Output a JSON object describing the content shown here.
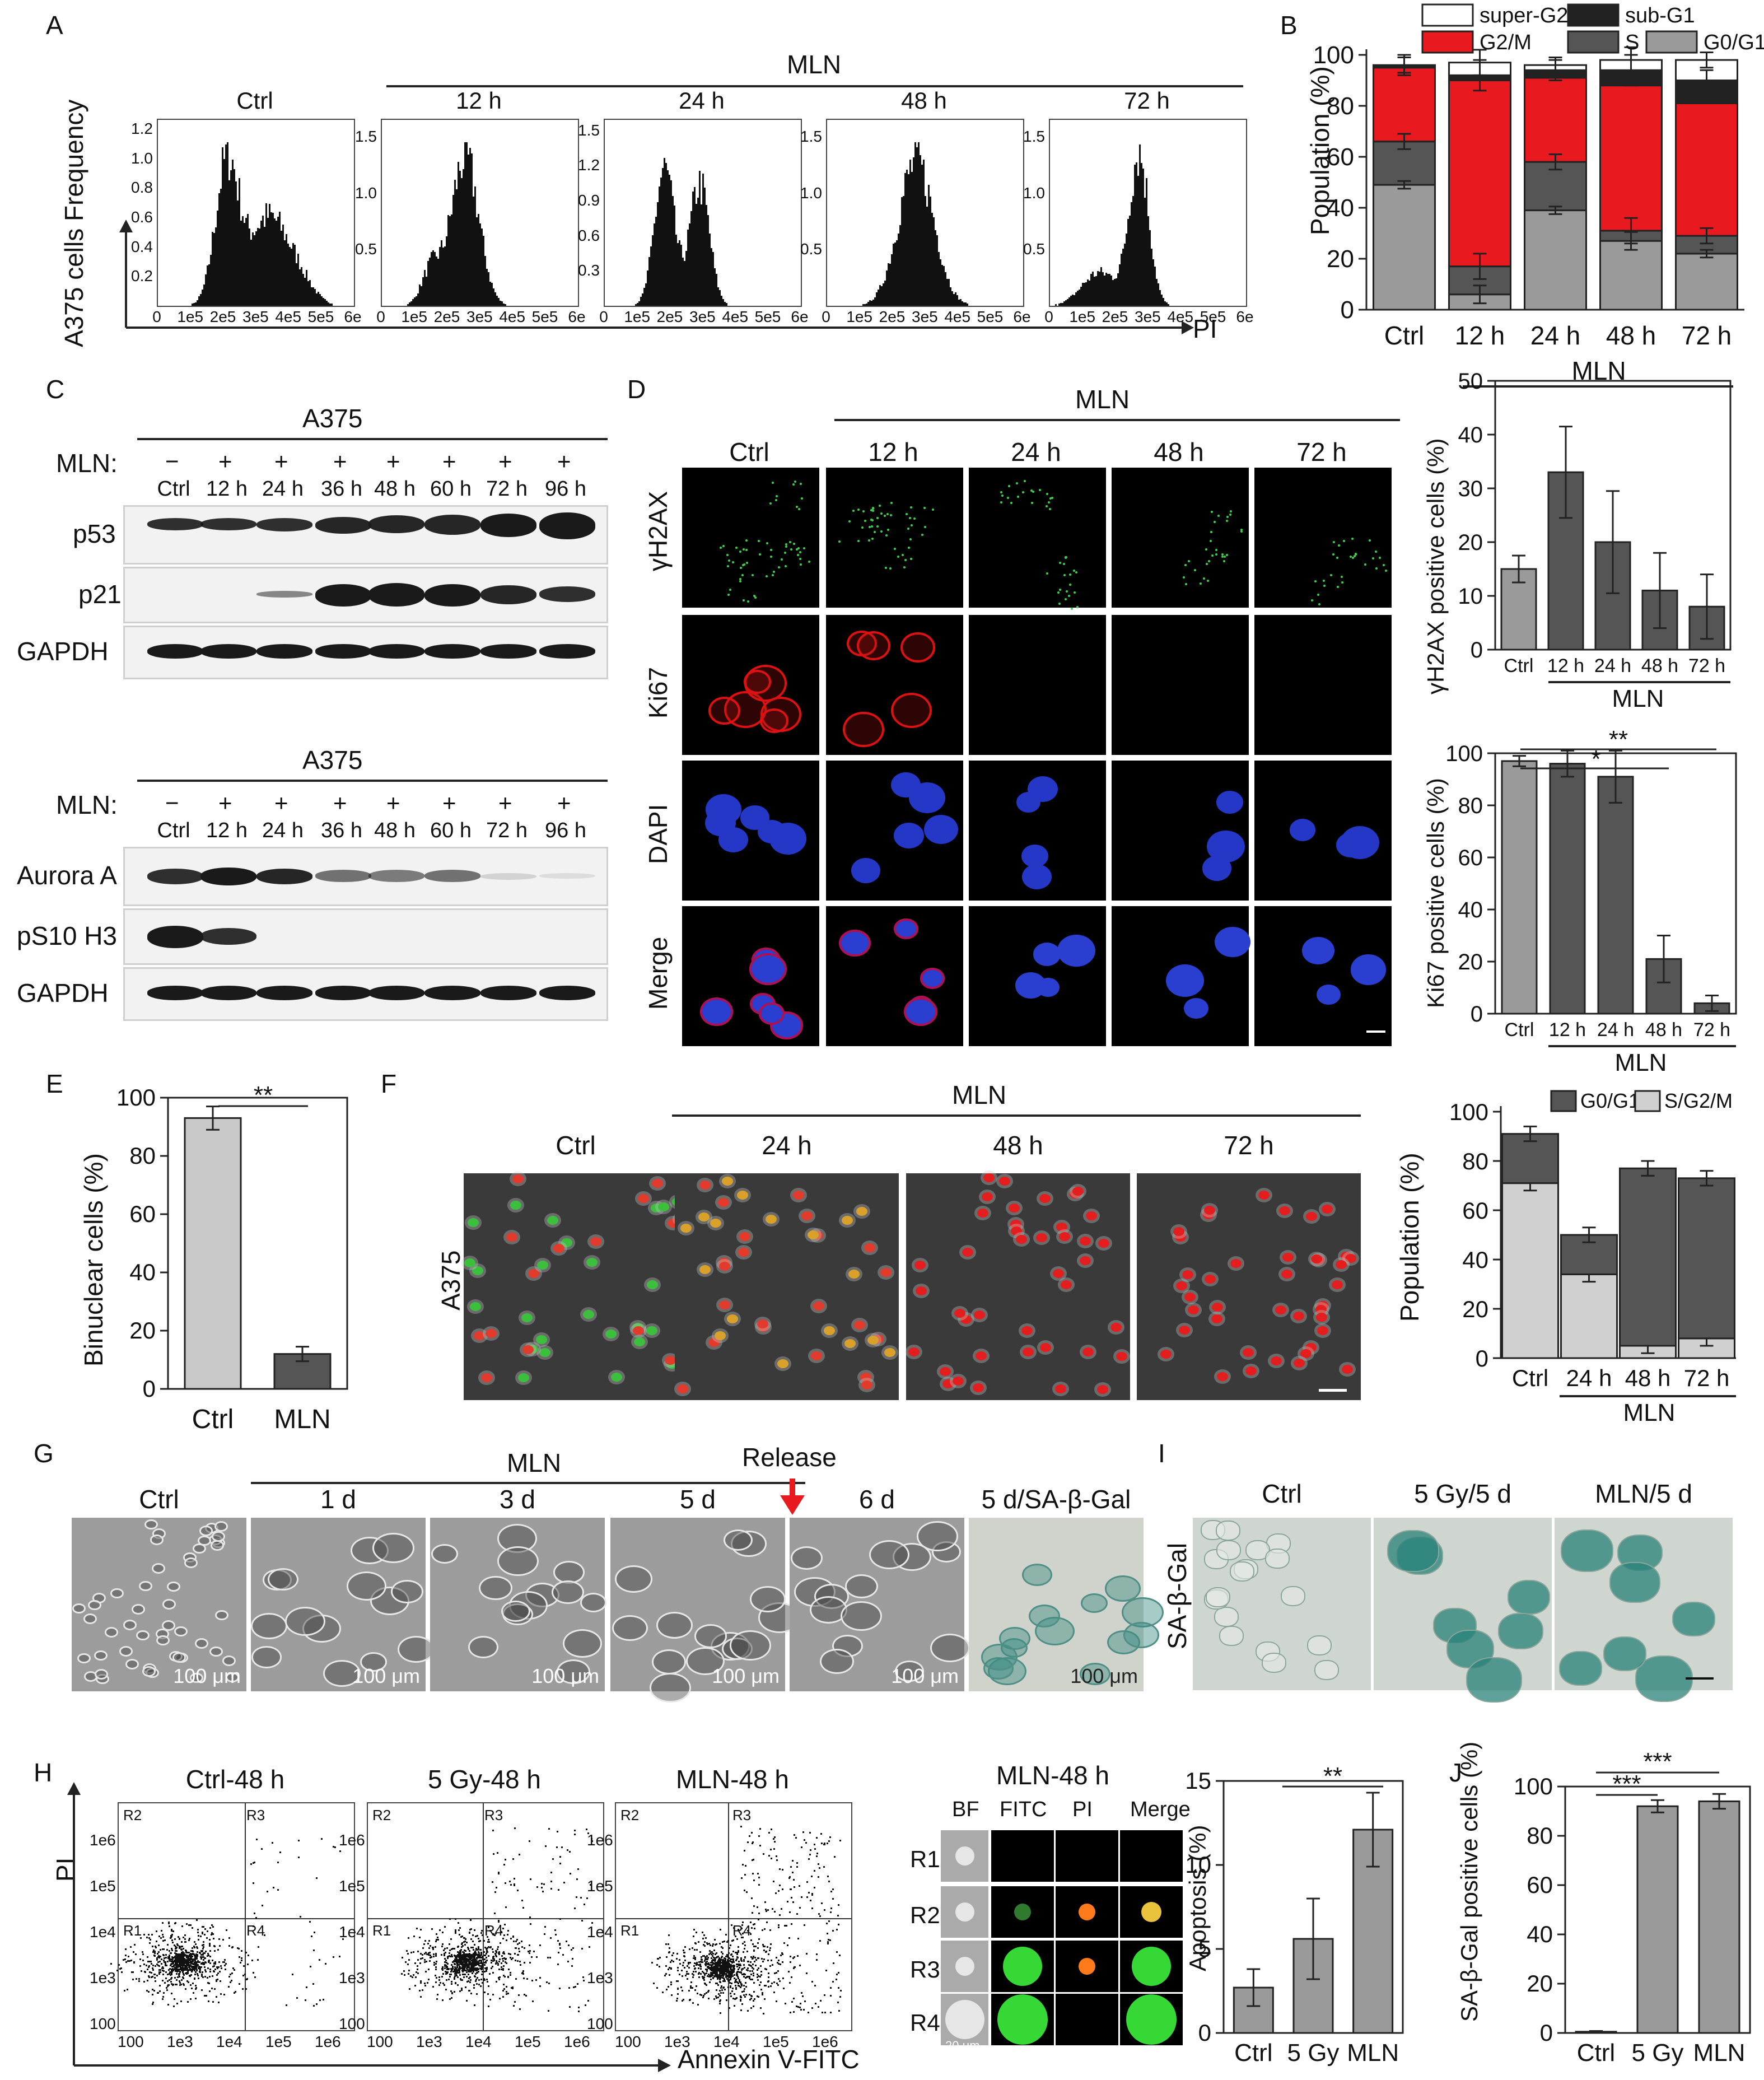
{
  "panels": {
    "A": "A",
    "B": "B",
    "C": "C",
    "D": "D",
    "E": "E",
    "F": "F",
    "G": "G",
    "H": "H",
    "I": "I",
    "J": "J"
  },
  "panel_a": {
    "ylabel": "A375 cells Frequency",
    "xlabel": "PI",
    "group": "MLN",
    "conditions": [
      "Ctrl",
      "12 h",
      "24 h",
      "48 h",
      "72 h"
    ],
    "xticks": [
      "0",
      "1e5",
      "2e5",
      "3e5",
      "4e5",
      "5e5",
      "6e"
    ],
    "yticks": [
      [
        "0.2",
        "0.4",
        "0.6",
        "0.8",
        "1.0",
        "1.2"
      ],
      [
        "0.5",
        "1.0",
        "1.5"
      ],
      [
        "0.3",
        "0.6",
        "0.9",
        "1.2",
        "1.5"
      ],
      [
        "0.5",
        "1.0",
        "1.5"
      ],
      [
        "0.5",
        "1.0",
        "1.5"
      ]
    ]
  },
  "panel_b": {
    "ylabel": "Population (%)",
    "group": "MLN",
    "legend": [
      "super-G2",
      "sub-G1",
      "G2/M",
      "S",
      "G0/G1"
    ],
    "chart_data": {
      "type": "bar",
      "stacked": true,
      "categories": [
        "Ctrl",
        "12 h",
        "24 h",
        "48 h",
        "72 h"
      ],
      "series": [
        {
          "name": "G0/G1",
          "values": [
            49,
            6,
            39,
            27,
            22
          ]
        },
        {
          "name": "S",
          "values": [
            17,
            11,
            19,
            4,
            7
          ]
        },
        {
          "name": "G2/M",
          "values": [
            29,
            73,
            33,
            57,
            52
          ]
        },
        {
          "name": "sub-G1",
          "values": [
            1,
            2,
            3,
            6,
            9
          ]
        },
        {
          "name": "super-G2",
          "values": [
            0,
            5,
            2,
            4,
            8
          ]
        }
      ],
      "ylim": [
        0,
        100
      ],
      "yticks": [
        "0",
        "20",
        "40",
        "60",
        "80",
        "100"
      ]
    }
  },
  "panel_c": {
    "cell": "A375",
    "treat_label": "MLN:",
    "signs": [
      "−",
      "+",
      "+",
      "+",
      "+",
      "+",
      "+",
      "+"
    ],
    "lanes": [
      "Ctrl",
      "12 h",
      "24 h",
      "36 h",
      "48 h",
      "60 h",
      "72 h",
      "96 h"
    ],
    "top_rows": [
      "p53",
      "p21",
      "GAPDH"
    ],
    "bottom_rows": [
      "Aurora A",
      "pS10 H3",
      "GAPDH"
    ]
  },
  "panel_d": {
    "group": "MLN",
    "cols": [
      "Ctrl",
      "12 h",
      "24 h",
      "48 h",
      "72 h"
    ],
    "rows": [
      "γH2AX",
      "Ki67",
      "DAPI",
      "Merge"
    ],
    "chart_top": {
      "ylabel": "γH2AX positive cells (%)",
      "group": "MLN",
      "chart_data": {
        "type": "bar",
        "categories": [
          "Ctrl",
          "12 h",
          "24 h",
          "48 h",
          "72 h"
        ],
        "values": [
          15,
          33,
          20,
          11,
          8
        ],
        "errors": [
          2.5,
          8.5,
          9.5,
          7,
          6
        ],
        "ylim": [
          0,
          50
        ],
        "yticks": [
          "0",
          "10",
          "20",
          "30",
          "40",
          "50"
        ]
      }
    },
    "chart_bottom": {
      "ylabel": "Ki67 positive cells (%)",
      "group": "MLN",
      "sig": [
        "*",
        "**"
      ],
      "chart_data": {
        "type": "bar",
        "categories": [
          "Ctrl",
          "12 h",
          "24 h",
          "48 h",
          "72 h"
        ],
        "values": [
          97,
          96,
          91,
          21,
          4
        ],
        "errors": [
          2,
          5,
          10,
          9,
          3
        ],
        "ylim": [
          0,
          100
        ],
        "yticks": [
          "0",
          "20",
          "40",
          "60",
          "80",
          "100"
        ]
      }
    }
  },
  "panel_e": {
    "ylabel": "Binuclear cells (%)",
    "sig": "**",
    "chart_data": {
      "type": "bar",
      "categories": [
        "Ctrl",
        "MLN"
      ],
      "values": [
        93,
        12
      ],
      "errors": [
        4,
        2.5
      ],
      "ylim": [
        0,
        100
      ],
      "yticks": [
        "0",
        "20",
        "40",
        "60",
        "80",
        "100"
      ]
    }
  },
  "panel_f": {
    "cell": "A375",
    "group": "MLN",
    "cols": [
      "Ctrl",
      "24 h",
      "48 h",
      "72 h"
    ],
    "chart": {
      "ylabel": "Population (%)",
      "group": "MLN",
      "legend": [
        "G0/G1",
        "S/G2/M"
      ],
      "chart_data": {
        "type": "bar",
        "stacked": true,
        "categories": [
          "Ctrl",
          "24 h",
          "48 h",
          "72 h"
        ],
        "series": [
          {
            "name": "S/G2/M",
            "values": [
              71,
              34,
              5,
              8
            ]
          },
          {
            "name": "G0/G1",
            "values": [
              20,
              16,
              72,
              65
            ]
          }
        ],
        "ylim": [
          0,
          100
        ],
        "yticks": [
          "0",
          "20",
          "40",
          "60",
          "80",
          "100"
        ]
      }
    }
  },
  "panel_g": {
    "group": "MLN",
    "release": "Release",
    "cols": [
      "Ctrl",
      "1 d",
      "3 d",
      "5 d",
      "6 d",
      "5 d/SA-β-Gal"
    ],
    "scale": "100 μm"
  },
  "panel_i": {
    "row": "SA-β-Gal",
    "cols": [
      "Ctrl",
      "5 Gy/5 d",
      "MLN/5 d"
    ]
  },
  "panel_h": {
    "plots": [
      "Ctrl-48 h",
      "5 Gy-48 h",
      "MLN-48 h"
    ],
    "quadrants": [
      "R1",
      "R2",
      "R3",
      "R4"
    ],
    "ylabel": "PI",
    "xlabel": "Annexin V-FITC",
    "xticks": [
      "100",
      "1e3",
      "1e4",
      "1e5",
      "1e6"
    ],
    "yticks": [
      "100",
      "1e3",
      "1e4",
      "1e5",
      "1e6"
    ],
    "imaging": {
      "title": "MLN-48 h",
      "cols": [
        "BF",
        "FITC",
        "PI",
        "Merge"
      ],
      "rows": [
        "R1",
        "R2",
        "R3",
        "R4"
      ],
      "scale": "20 μm"
    },
    "chart": {
      "ylabel": "Apoptosis (%)",
      "sig": "**",
      "chart_data": {
        "type": "bar",
        "categories": [
          "Ctrl",
          "5 Gy",
          "MLN"
        ],
        "values": [
          2.7,
          5.6,
          12.1
        ],
        "errors": [
          1.1,
          2.4,
          2.2
        ],
        "ylim": [
          0,
          15
        ],
        "yticks": [
          "0",
          "5",
          "10",
          "15"
        ]
      }
    }
  },
  "panel_j": {
    "ylabel": "SA-β-Gal positive cells (%)",
    "sig": [
      "***",
      "***"
    ],
    "chart_data": {
      "type": "bar",
      "categories": [
        "Ctrl",
        "5 Gy",
        "MLN"
      ],
      "values": [
        0.5,
        92,
        94
      ],
      "errors": [
        0.3,
        2.5,
        3
      ],
      "ylim": [
        0,
        100
      ],
      "yticks": [
        "0",
        "20",
        "40",
        "60",
        "80",
        "100"
      ]
    }
  },
  "colors": {
    "g0g1": "#9a9a9a",
    "s": "#555555",
    "g2m": "#e8191f",
    "subg1": "#222222",
    "superg2": "#ffffff",
    "barDark": "#555555",
    "barLight": "#c8c8c8",
    "sGreen": "#3cb43c"
  }
}
